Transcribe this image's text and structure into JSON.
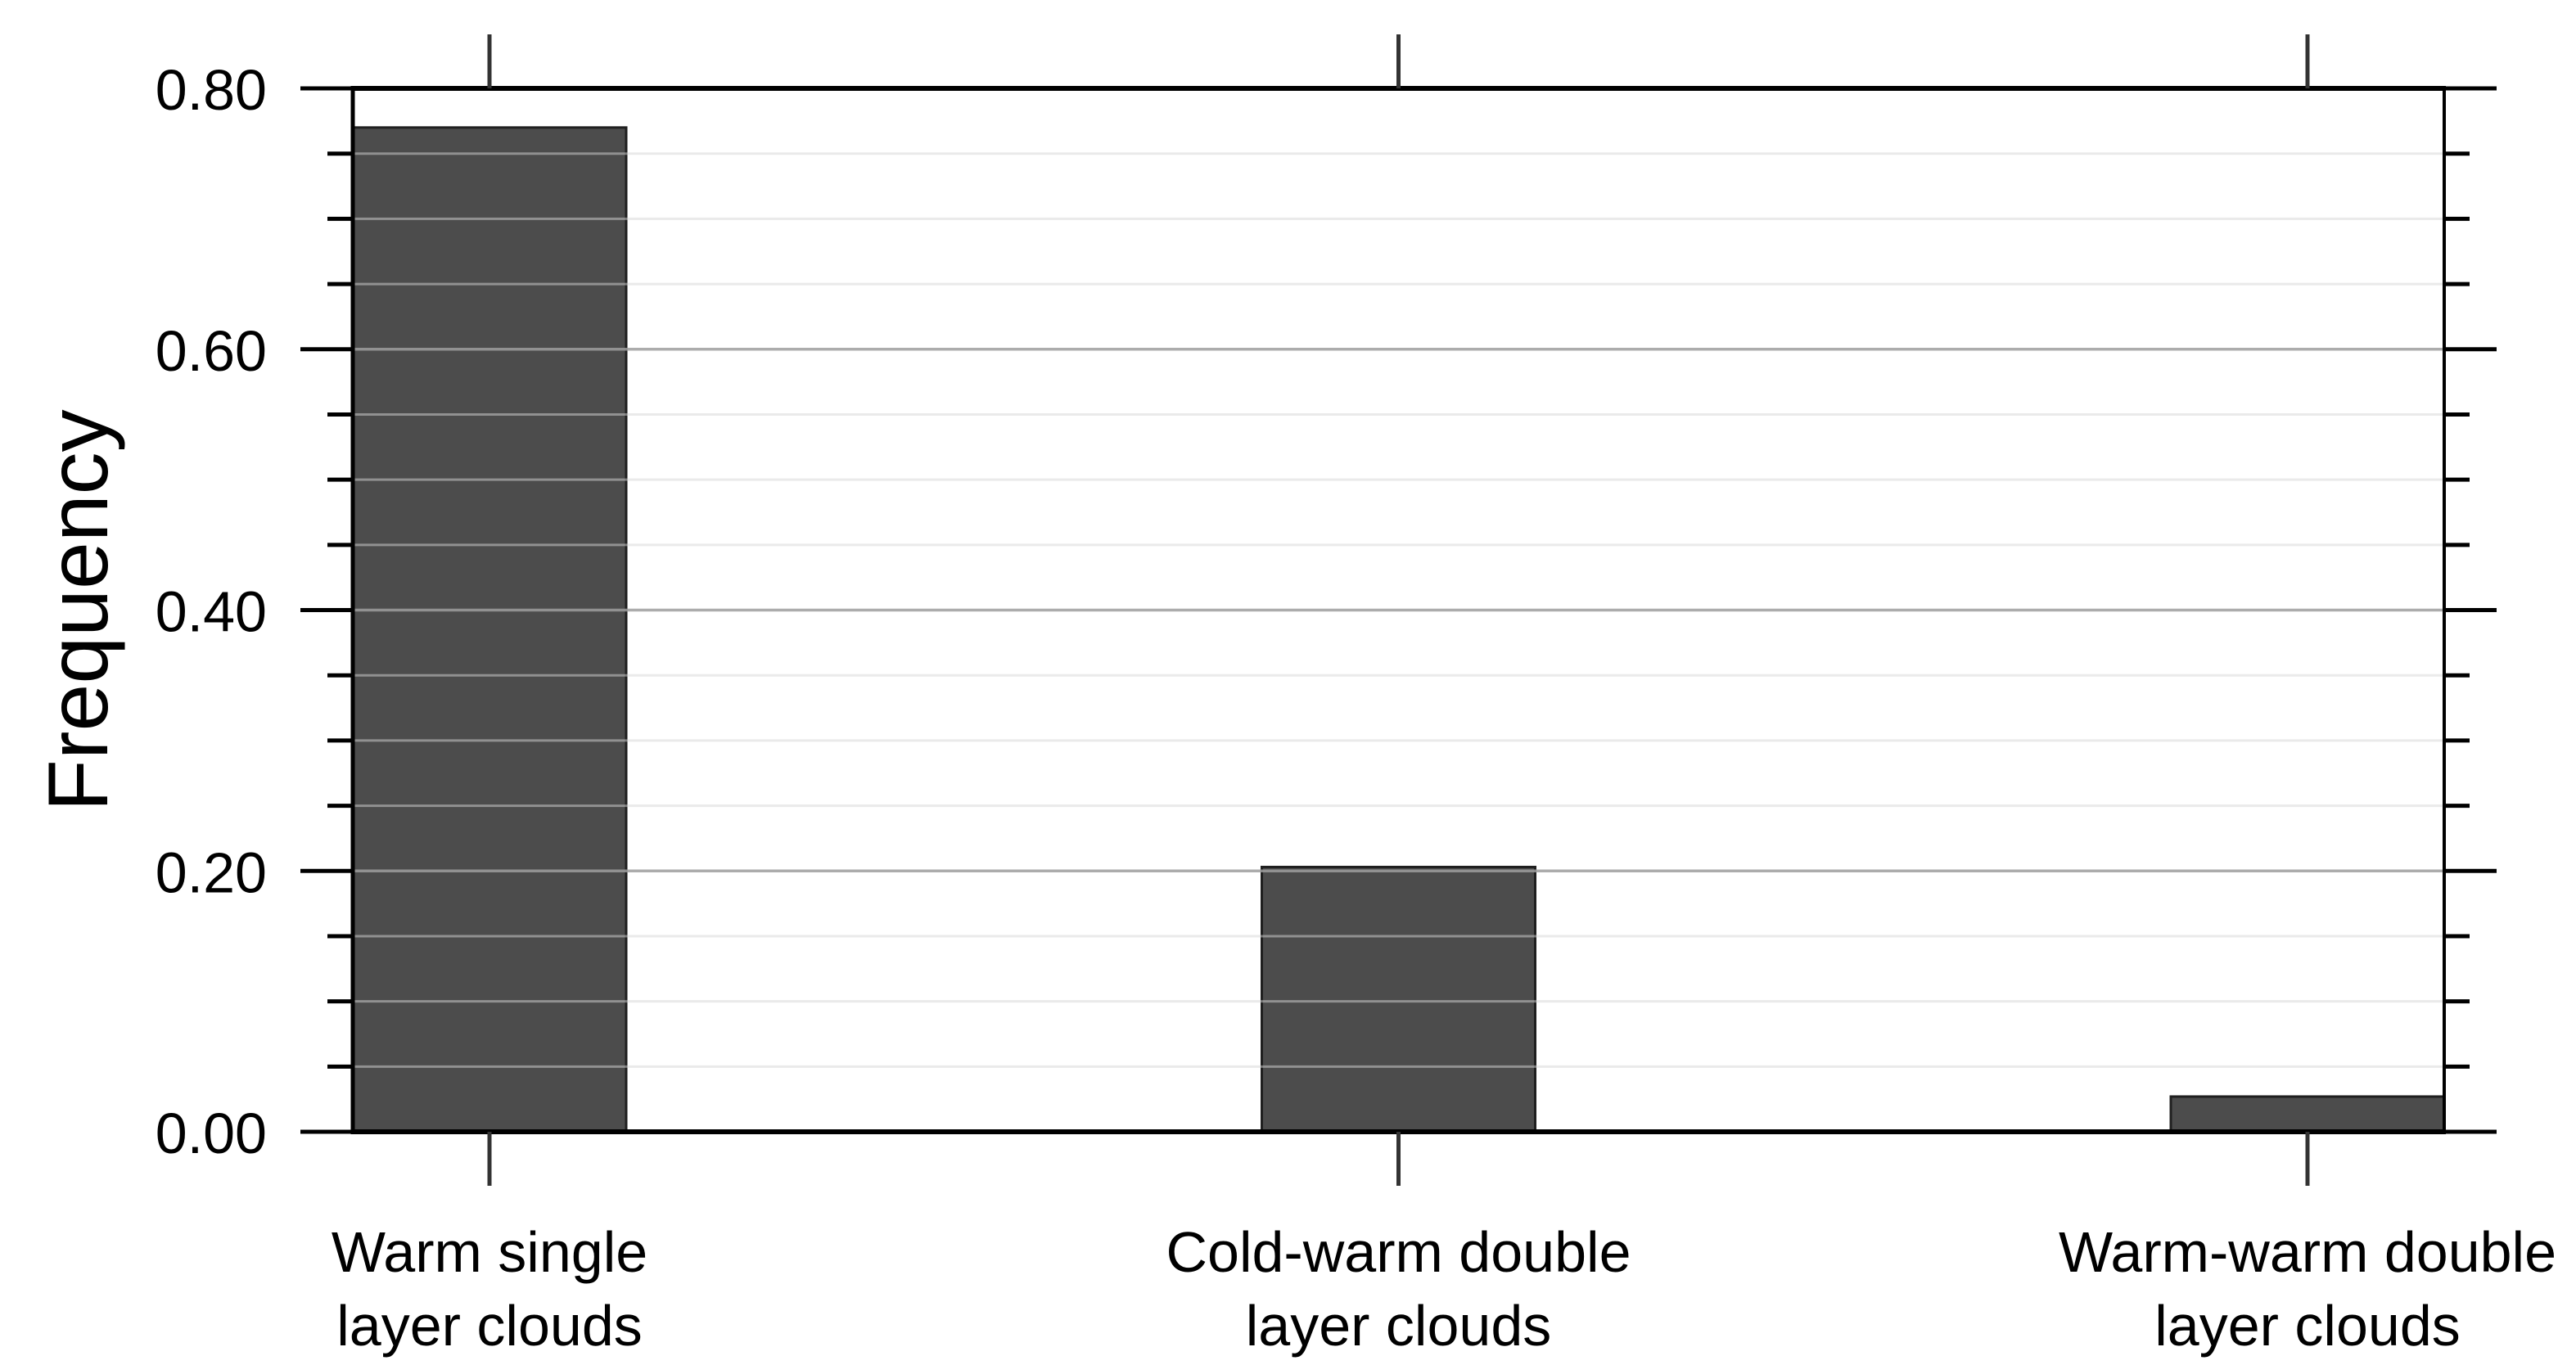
{
  "chart_data": {
    "type": "bar",
    "title": "",
    "ylabel": "Frequency",
    "xlabel": "",
    "categories": [
      "Warm single\nlayer clouds",
      "Cold-warm double\nlayer clouds",
      "Warm-warm double\nlayer clouds"
    ],
    "values": [
      0.77,
      0.203,
      0.027
    ],
    "ylim": [
      0,
      0.8
    ],
    "ytick_step": 0.2,
    "ytick_labels": [
      "0.00",
      "0.20",
      "0.40",
      "0.60",
      "0.80"
    ],
    "minor_tick_step": 0.05,
    "grid": "horizontal",
    "legend_position": "none",
    "bar_color": "#4c4c4c",
    "bar_outline_color": "#1f1f1f",
    "axis_color": "#000000",
    "category_tick_color": "#333333",
    "major_grid_color": "rgba(158,158,158,0.85)",
    "minor_grid_color": "rgba(214,214,214,0.5)",
    "text_color": "#000000",
    "background_color": "#ffffff"
  }
}
